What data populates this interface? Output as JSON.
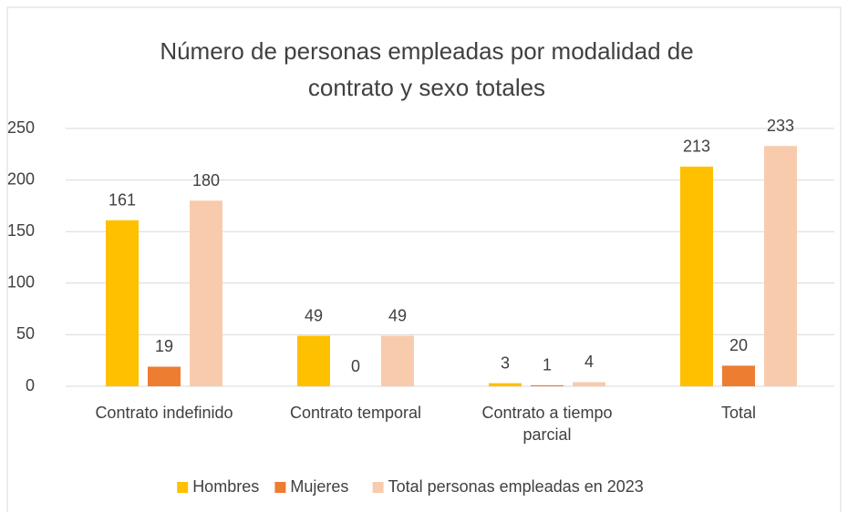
{
  "chart_data": {
    "type": "bar",
    "title": "Número de personas empleadas por modalidad de contrato y sexo totales",
    "categories": [
      "Contrato indefinido",
      "Contrato temporal",
      "Contrato a tiempo parcial",
      "Total"
    ],
    "series": [
      {
        "name": "Hombres",
        "color": "#FFC000",
        "values": [
          161,
          49,
          3,
          213
        ]
      },
      {
        "name": "Mujeres",
        "color": "#ED7D31",
        "values": [
          19,
          0,
          1,
          20
        ]
      },
      {
        "name": "Total personas empleadas en 2023",
        "color": "#F8CBAD",
        "values": [
          180,
          49,
          4,
          233
        ]
      }
    ],
    "ylim": [
      0,
      250
    ],
    "yticks": [
      0,
      50,
      100,
      150,
      200,
      250
    ],
    "grid": true,
    "legend": "bottom"
  }
}
